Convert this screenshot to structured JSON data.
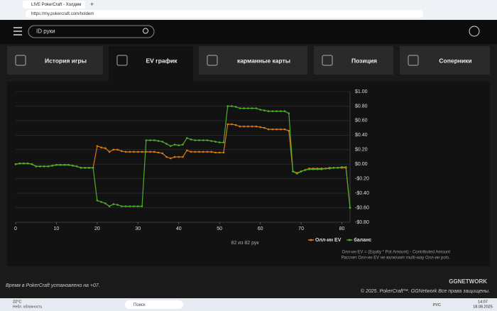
{
  "browser": {
    "tab_title": "LIVE PokerCraft - Холдем",
    "url": "https://my.pokercraft.com/holdem"
  },
  "header": {
    "search_placeholder": "ID руки"
  },
  "tabs": [
    "История игры",
    "EV график",
    "карманные карты",
    "Позиция",
    "Соперники"
  ],
  "chart_data": {
    "type": "line",
    "x_label": "82 из 82 рук",
    "x": [
      0,
      1,
      2,
      3,
      4,
      5,
      6,
      7,
      8,
      9,
      10,
      11,
      12,
      13,
      14,
      15,
      16,
      17,
      18,
      19,
      20,
      21,
      22,
      23,
      24,
      25,
      26,
      27,
      28,
      29,
      30,
      31,
      32,
      33,
      34,
      35,
      36,
      37,
      38,
      39,
      40,
      41,
      42,
      43,
      44,
      45,
      46,
      47,
      48,
      49,
      50,
      51,
      52,
      53,
      54,
      55,
      56,
      57,
      58,
      59,
      60,
      61,
      62,
      63,
      64,
      65,
      66,
      67,
      68,
      69,
      70,
      71,
      72,
      73,
      74,
      75,
      76,
      77,
      78,
      79,
      80,
      81,
      82
    ],
    "xlim": [
      0,
      82
    ],
    "xticks": [
      0,
      10,
      20,
      30,
      40,
      50,
      60,
      70,
      80
    ],
    "ylim": [
      -0.8,
      1.0
    ],
    "yticks": [
      {
        "value": 1.0,
        "label": "$1.00"
      },
      {
        "value": 0.8,
        "label": "$0.80"
      },
      {
        "value": 0.6,
        "label": "$0.60"
      },
      {
        "value": 0.4,
        "label": "$0.40"
      },
      {
        "value": 0.2,
        "label": "$0.20"
      },
      {
        "value": 0,
        "label": "$0.00"
      },
      {
        "value": -0.2,
        "label": "-$0.20"
      },
      {
        "value": -0.4,
        "label": "-$0.40"
      },
      {
        "value": -0.6,
        "label": "-$0.60"
      },
      {
        "value": -0.8,
        "label": "-$0.80"
      }
    ],
    "grid": true,
    "legend": "bottom-right",
    "series": [
      {
        "name": "Олл-ин EV",
        "color": "#d9790f",
        "values": [
          0,
          0.01,
          0.01,
          0.01,
          0,
          -0.03,
          -0.03,
          -0.03,
          -0.03,
          -0.02,
          -0.01,
          -0.01,
          -0.01,
          -0.01,
          -0.02,
          -0.03,
          -0.05,
          -0.05,
          -0.05,
          -0.05,
          0.25,
          0.23,
          0.22,
          0.17,
          0.2,
          0.2,
          0.18,
          0.17,
          0.17,
          0.17,
          0.17,
          0.17,
          0.17,
          0.17,
          0.17,
          0.16,
          0.15,
          0.1,
          0.08,
          0.1,
          0.1,
          0.1,
          0.19,
          0.17,
          0.17,
          0.17,
          0.17,
          0.17,
          0.17,
          0.16,
          0.16,
          0.16,
          0.55,
          0.55,
          0.54,
          0.52,
          0.52,
          0.52,
          0.52,
          0.52,
          0.51,
          0.5,
          0.48,
          0.48,
          0.48,
          0.48,
          0.48,
          0.46,
          -0.1,
          -0.12,
          -0.1,
          -0.08,
          -0.06,
          -0.06,
          -0.06,
          -0.06,
          -0.06,
          -0.05,
          -0.05,
          -0.05,
          -0.05,
          -0.05,
          -0.6
        ]
      },
      {
        "name": "баланс",
        "color": "#4caf2a",
        "values": [
          0,
          0.01,
          0.01,
          0.01,
          0,
          -0.03,
          -0.03,
          -0.03,
          -0.03,
          -0.02,
          -0.01,
          -0.01,
          -0.01,
          -0.01,
          -0.02,
          -0.03,
          -0.05,
          -0.05,
          -0.05,
          -0.05,
          -0.5,
          -0.52,
          -0.54,
          -0.58,
          -0.55,
          -0.56,
          -0.58,
          -0.58,
          -0.58,
          -0.58,
          -0.58,
          -0.58,
          0.33,
          0.33,
          0.33,
          0.32,
          0.31,
          0.28,
          0.25,
          0.27,
          0.26,
          0.27,
          0.36,
          0.34,
          0.33,
          0.33,
          0.33,
          0.33,
          0.32,
          0.31,
          0.3,
          0.3,
          0.8,
          0.8,
          0.79,
          0.77,
          0.77,
          0.77,
          0.77,
          0.77,
          0.75,
          0.74,
          0.73,
          0.73,
          0.73,
          0.73,
          0.73,
          0.7,
          -0.1,
          -0.13,
          -0.1,
          -0.08,
          -0.07,
          -0.07,
          -0.07,
          -0.07,
          -0.06,
          -0.06,
          -0.05,
          -0.05,
          -0.04,
          -0.04,
          -0.6
        ]
      }
    ],
    "notes": [
      "Олл-ин EV = (Equity * Pot Amount) - Contributed Amount",
      "Рассчет Олл-ин EV не включает multi-way Олл-ин pots."
    ]
  },
  "footer": {
    "timezone": "Время в PokerCraft установлено на +07.",
    "copyright": "© 2025. PokerCraft™. GGNetwork Все права защищены.",
    "logo": "GGNETWORK"
  },
  "taskbar": {
    "temperature": "22°C",
    "weather": "Небл. облачность",
    "search": "Поиск",
    "language": "РУС",
    "time": "14:07",
    "date": "18.08.2025"
  }
}
